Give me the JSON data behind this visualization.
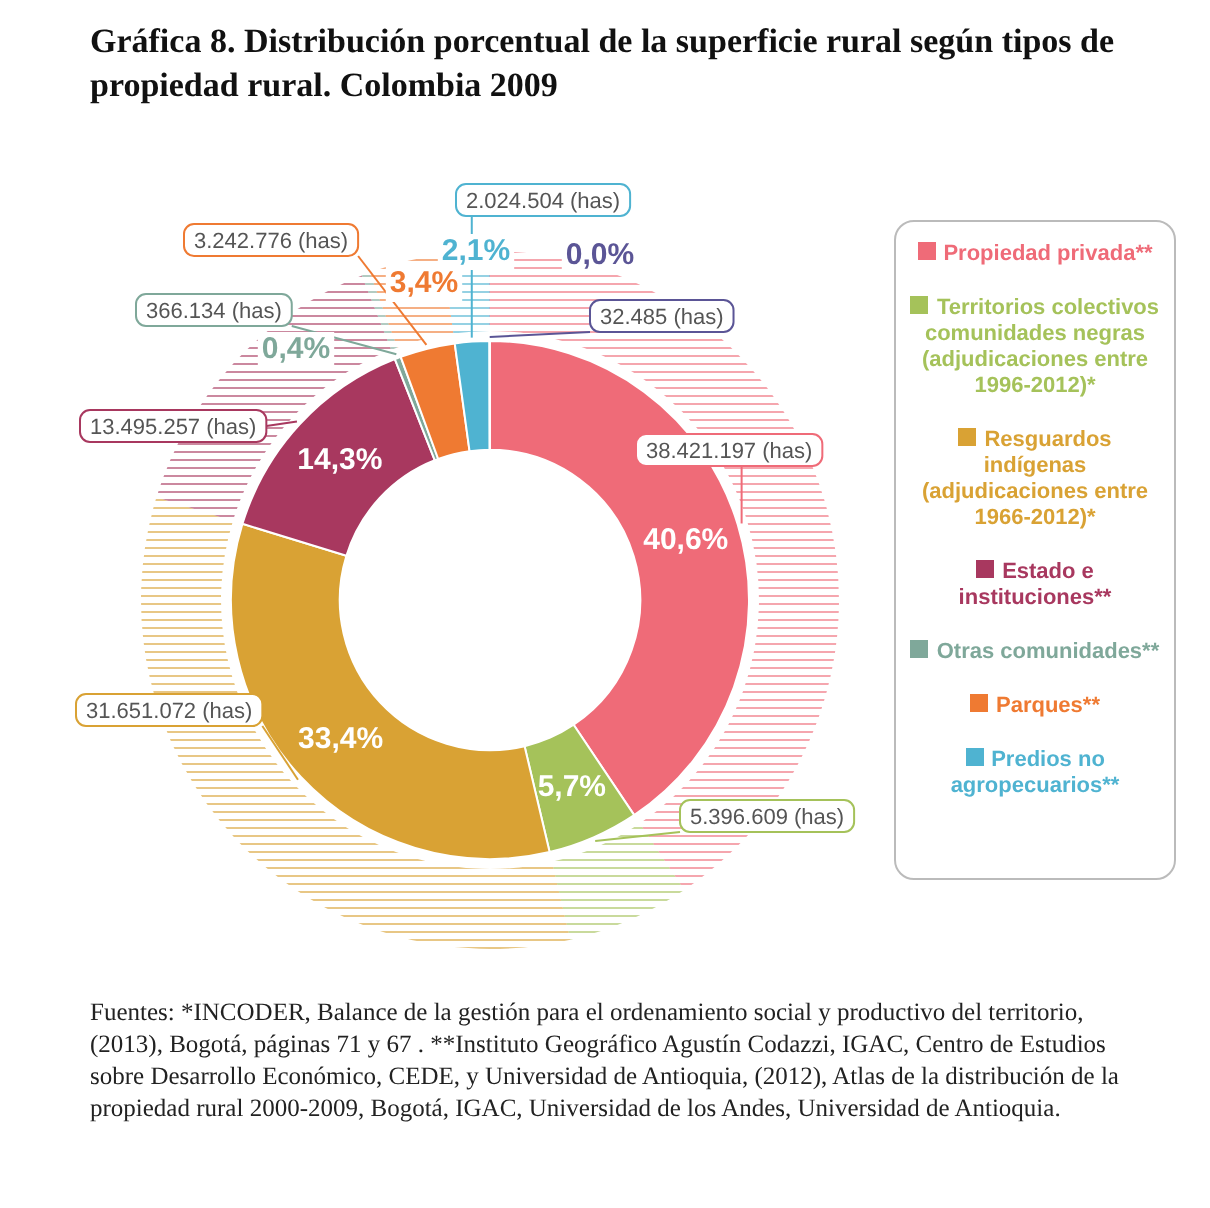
{
  "chart_data": {
    "type": "donut",
    "title": "Gráfica 8. Distribución porcentual de la superficie rural según tipos de propiedad rural. Colombia 2009",
    "categories": [
      "Propiedad privada**",
      "Territorios colectivos comunidades negras (adjudicaciones entre 1996-2012)*",
      "Resguardos indígenas (adjudicaciones entre 1966-2012)*",
      "Estado e instituciones**",
      "Otras comunidades**",
      "Parques**",
      "Predios no agropecuarios**",
      null
    ],
    "values": [
      38421197,
      5396609,
      31651072,
      13495257,
      366134,
      3242776,
      2024504,
      32485
    ],
    "colors": [
      "#ef6b78",
      "#a5c25a",
      "#d9a234",
      "#a8385f",
      "#7fa89a",
      "#ef7a32",
      "#4fb3d1",
      "#5b5596"
    ],
    "value_labels": [
      "38.421.197 (has)",
      "5.396.609 (has)",
      "31.651.072 (has)",
      "13.495.257 (has)",
      "366.134 (has)",
      "3.242.776 (has)",
      "2.024.504 (has)",
      "32.485 (has)"
    ],
    "annotations": [
      "40,6%",
      "5,7%",
      "33,4%",
      "14,3%",
      "0,4%",
      "3,4%",
      "2,1%",
      "0,0%",
      "Fuentes: *INCODER, Balance de la gestión para el ordenamiento social y productivo del territorio, (2013), Bogotá, páginas 71 y 67 . **Instituto Geográfico Agustín Codazzi, IGAC, Centro de Estudios sobre Desarrollo Económico, CEDE, y Universidad de Antioquia, (2012), Atlas de la distribución de la propiedad rural 2000-2009, Bogotá, IGAC, Universidad de los Andes, Universidad de Antioquia."
    ],
    "legend": "right"
  }
}
